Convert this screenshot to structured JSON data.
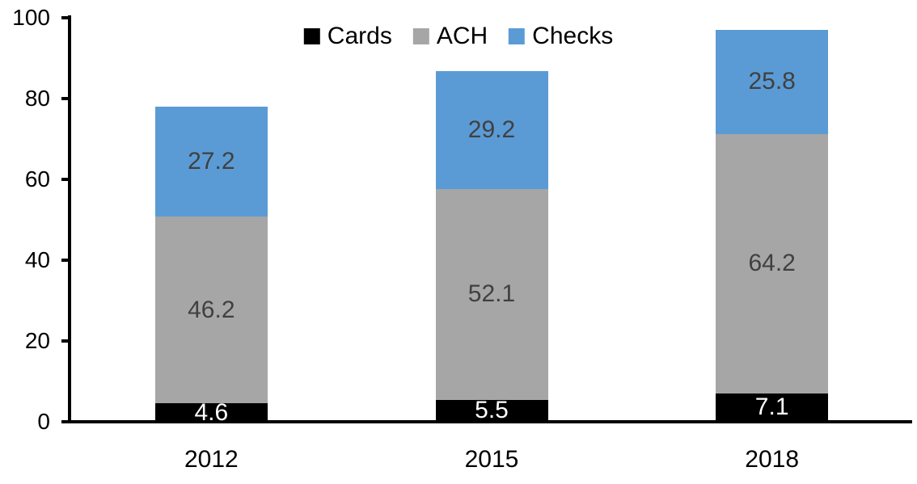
{
  "chart_data": {
    "type": "bar",
    "stacked": true,
    "title": "",
    "xlabel": "",
    "ylabel": "",
    "categories": [
      "2012",
      "2015",
      "2018"
    ],
    "series": [
      {
        "name": "Cards",
        "color": "#000000",
        "label_color": "#FFFFFF",
        "values": [
          4.6,
          5.5,
          7.1
        ]
      },
      {
        "name": "ACH",
        "color": "#A6A6A6",
        "label_color": "#404040",
        "values": [
          46.2,
          52.1,
          64.2
        ]
      },
      {
        "name": "Checks",
        "color": "#5B9BD5",
        "label_color": "#404040",
        "values": [
          27.2,
          29.2,
          25.8
        ]
      }
    ],
    "yticks": [
      0,
      20,
      40,
      60,
      80,
      100
    ],
    "ylim": [
      0,
      100
    ],
    "grid": false,
    "legend_position": "top-center",
    "axis_color": "#000000",
    "value_label_decimals": 1
  }
}
